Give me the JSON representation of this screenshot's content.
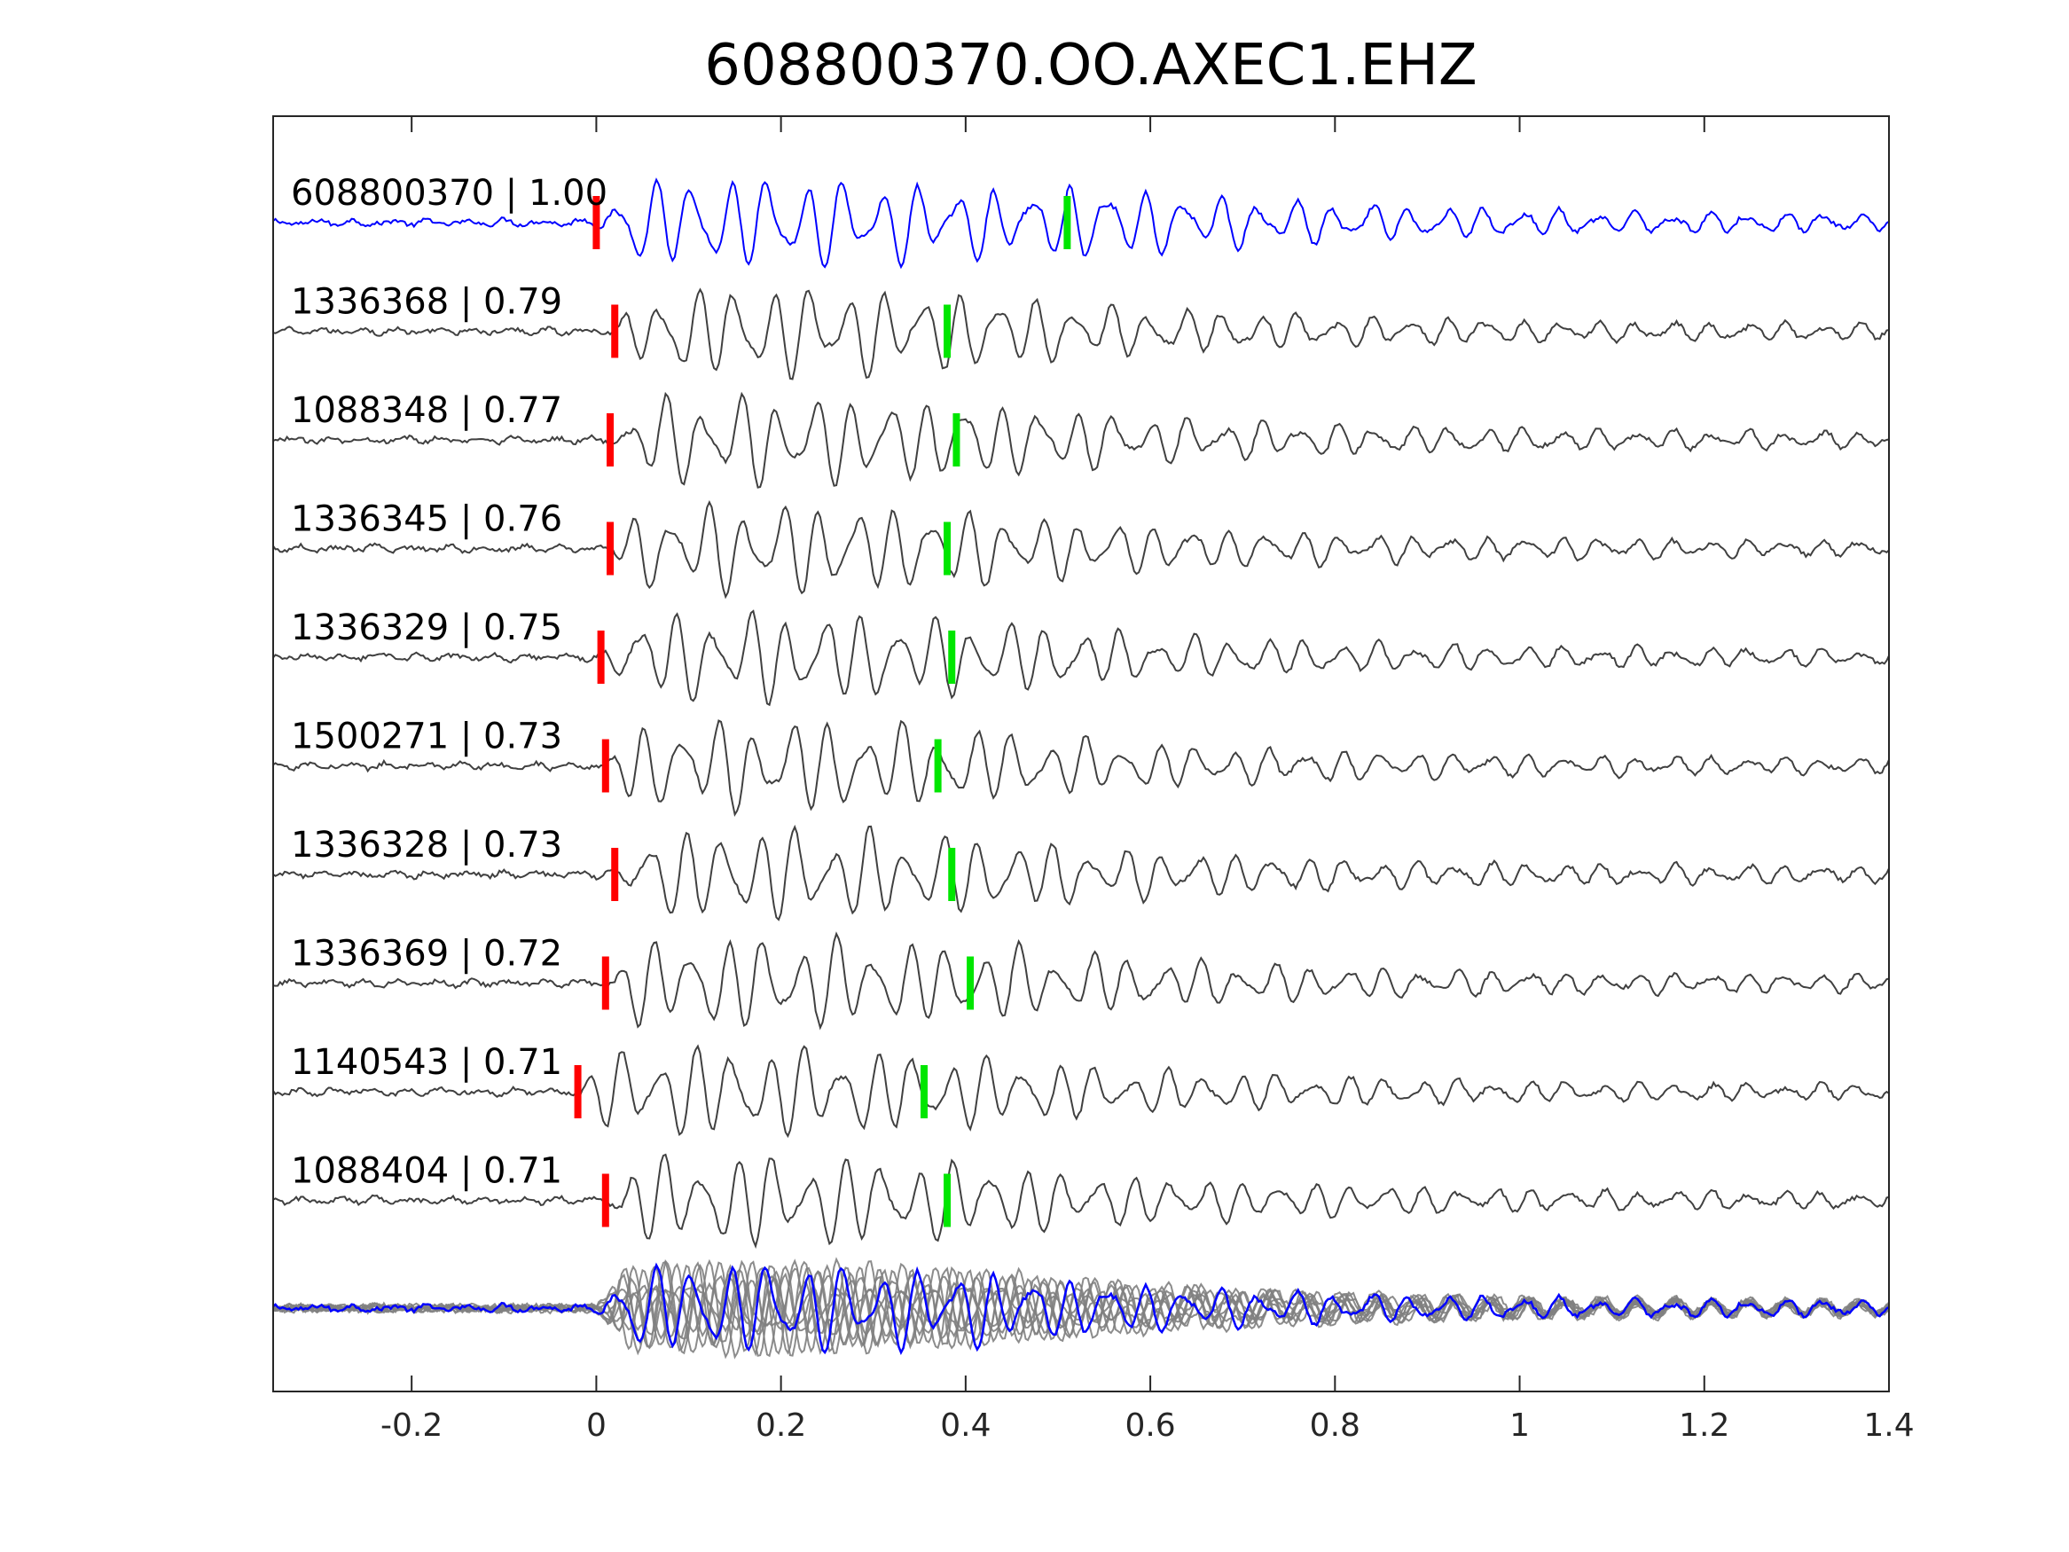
{
  "chart_data": {
    "type": "line",
    "title": "608800370.OO.AXEC1.EHZ",
    "xlabel": "",
    "ylabel": "",
    "xlim": [
      -0.35,
      1.4
    ],
    "xticks": [
      -0.2,
      0,
      0.2,
      0.4,
      0.6,
      0.8,
      1,
      1.2,
      1.4
    ],
    "xtick_labels": [
      "-0.2",
      "0",
      "0.2",
      "0.4",
      "0.6",
      "0.8",
      "1",
      "1.2",
      "1.4"
    ],
    "grid": false,
    "colors": {
      "template": "#0000ff",
      "trace": "#404040",
      "stack": "#808080",
      "p_pick": "#ff0000",
      "s_pick": "#00e600"
    },
    "series": [
      {
        "label": "608800370 | 1.00",
        "id": "608800370",
        "cc": 1.0,
        "p_pick": 0.0,
        "s_pick": 0.51,
        "is_template": true
      },
      {
        "label": "1336368 | 0.79",
        "id": "1336368",
        "cc": 0.79,
        "p_pick": 0.02,
        "s_pick": 0.38
      },
      {
        "label": "1088348 | 0.77",
        "id": "1088348",
        "cc": 0.77,
        "p_pick": 0.015,
        "s_pick": 0.39
      },
      {
        "label": "1336345 | 0.76",
        "id": "1336345",
        "cc": 0.76,
        "p_pick": 0.015,
        "s_pick": 0.38
      },
      {
        "label": "1336329 | 0.75",
        "id": "1336329",
        "cc": 0.75,
        "p_pick": 0.005,
        "s_pick": 0.385
      },
      {
        "label": "1500271 | 0.73",
        "id": "1500271",
        "cc": 0.73,
        "p_pick": 0.01,
        "s_pick": 0.37
      },
      {
        "label": "1336328 | 0.73",
        "id": "1336328",
        "cc": 0.73,
        "p_pick": 0.02,
        "s_pick": 0.385
      },
      {
        "label": "1336369 | 0.72",
        "id": "1336369",
        "cc": 0.72,
        "p_pick": 0.01,
        "s_pick": 0.405
      },
      {
        "label": "1140543 | 0.71",
        "id": "1140543",
        "cc": 0.71,
        "p_pick": -0.02,
        "s_pick": 0.355
      },
      {
        "label": "1088404 | 0.71",
        "id": "1088404",
        "cc": 0.71,
        "p_pick": 0.01,
        "s_pick": 0.38
      }
    ],
    "stack_overlay": true
  }
}
